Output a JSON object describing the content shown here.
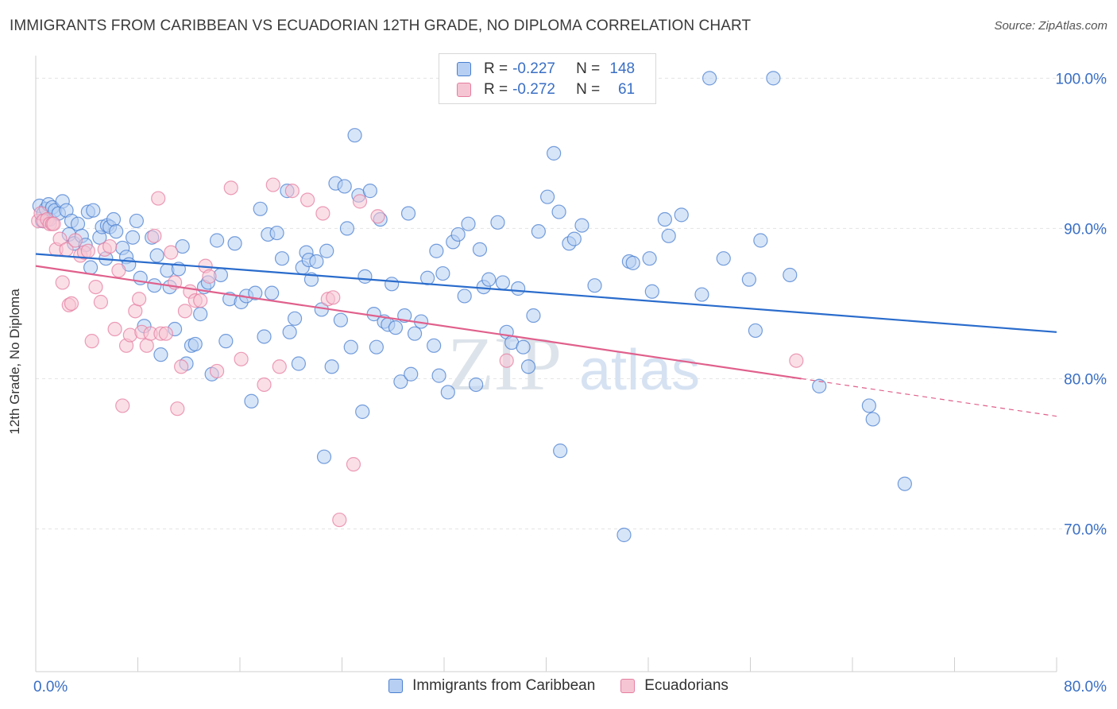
{
  "title": "IMMIGRANTS FROM CARIBBEAN VS ECUADORIAN 12TH GRADE, NO DIPLOMA CORRELATION CHART",
  "source": "Source: ZipAtlas.com",
  "watermark": {
    "zip": "ZIP",
    "atlas": "atlas"
  },
  "colors": {
    "blue": "#4a7fd0",
    "blue_fill": "#b7cff2",
    "blue_line": "#2a6ccc",
    "pink": "#e57ea0",
    "pink_fill": "#f6c5d4",
    "pink_line": "#e0608c",
    "tick_label": "#3a6fc4"
  },
  "stats": [
    {
      "r_label": "R =",
      "r_value": "-0.227",
      "n_label": "N =",
      "n_value": "148"
    },
    {
      "r_label": "R =",
      "r_value": "-0.272",
      "n_label": "N =",
      "n_value": "61"
    }
  ],
  "legend": [
    {
      "label": "Immigrants from Caribbean"
    },
    {
      "label": "Ecuadorians"
    }
  ],
  "chart_data": {
    "type": "scatter",
    "title": "IMMIGRANTS FROM CARIBBEAN VS ECUADORIAN 12TH GRADE, NO DIPLOMA CORRELATION CHART",
    "xlabel": "",
    "ylabel": "12th Grade, No Diploma",
    "xlim": [
      0,
      80
    ],
    "ylim": [
      60.5,
      101.5
    ],
    "x_tick_labels": [
      {
        "value": 0,
        "label": "0.0%"
      },
      {
        "value": 80,
        "label": "80.0%"
      }
    ],
    "y_tick_labels": [
      {
        "value": 100,
        "label": "100.0%"
      },
      {
        "value": 90,
        "label": "90.0%"
      },
      {
        "value": 80,
        "label": "80.0%"
      },
      {
        "value": 70,
        "label": "70.0%"
      }
    ],
    "grid": true,
    "legend_position": "bottom",
    "series": [
      {
        "name": "Immigrants from Caribbean",
        "trend": {
          "x": [
            0,
            80
          ],
          "y": [
            88.3,
            83.1
          ]
        },
        "points": [
          [
            0.3,
            91.5
          ],
          [
            0.5,
            90.5
          ],
          [
            0.6,
            91
          ],
          [
            0.8,
            91.3
          ],
          [
            1,
            91.6
          ],
          [
            1.1,
            90.6
          ],
          [
            1.3,
            91.4
          ],
          [
            1.5,
            91.2
          ],
          [
            1.8,
            91
          ],
          [
            2.1,
            91.8
          ],
          [
            2.4,
            91.2
          ],
          [
            2.6,
            89.6
          ],
          [
            2.8,
            90.5
          ],
          [
            3,
            89
          ],
          [
            3.3,
            90.3
          ],
          [
            3.6,
            89.5
          ],
          [
            3.9,
            88.9
          ],
          [
            4.1,
            91.1
          ],
          [
            4.3,
            87.4
          ],
          [
            4.5,
            91.2
          ],
          [
            5,
            89.4
          ],
          [
            5.2,
            90.1
          ],
          [
            5.5,
            88
          ],
          [
            5.6,
            90.2
          ],
          [
            5.8,
            90.1
          ],
          [
            6.1,
            90.6
          ],
          [
            6.3,
            89.8
          ],
          [
            6.8,
            88.7
          ],
          [
            7.1,
            88.1
          ],
          [
            7.3,
            87.6
          ],
          [
            7.6,
            89.4
          ],
          [
            7.9,
            90.5
          ],
          [
            8.2,
            86.7
          ],
          [
            8.5,
            83.5
          ],
          [
            9.1,
            89.4
          ],
          [
            9.3,
            86.2
          ],
          [
            9.5,
            88.2
          ],
          [
            9.8,
            81.6
          ],
          [
            10.3,
            87.2
          ],
          [
            10.5,
            86.1
          ],
          [
            10.9,
            83.3
          ],
          [
            11.2,
            87.3
          ],
          [
            11.5,
            88.8
          ],
          [
            11.8,
            81
          ],
          [
            12.2,
            82.2
          ],
          [
            12.5,
            82.3
          ],
          [
            12.9,
            84.3
          ],
          [
            13.2,
            86.1
          ],
          [
            13.5,
            86.4
          ],
          [
            13.8,
            80.3
          ],
          [
            14.2,
            89.2
          ],
          [
            14.5,
            86.9
          ],
          [
            14.9,
            82.5
          ],
          [
            15.2,
            85.3
          ],
          [
            15.6,
            89
          ],
          [
            16.1,
            85.1
          ],
          [
            16.5,
            85.5
          ],
          [
            16.9,
            78.5
          ],
          [
            17.2,
            85.7
          ],
          [
            17.6,
            91.3
          ],
          [
            17.9,
            82.8
          ],
          [
            18.2,
            89.6
          ],
          [
            18.5,
            85.7
          ],
          [
            18.9,
            89.7
          ],
          [
            19.3,
            88
          ],
          [
            19.7,
            92.5
          ],
          [
            19.9,
            83.1
          ],
          [
            20.3,
            84
          ],
          [
            20.6,
            81
          ],
          [
            20.9,
            87.4
          ],
          [
            21.2,
            88.4
          ],
          [
            21.4,
            87.9
          ],
          [
            21.6,
            86.6
          ],
          [
            22,
            87.8
          ],
          [
            22.4,
            84.6
          ],
          [
            22.6,
            74.8
          ],
          [
            22.8,
            88.5
          ],
          [
            23.2,
            80.8
          ],
          [
            23.5,
            93
          ],
          [
            23.9,
            83.9
          ],
          [
            24.2,
            92.8
          ],
          [
            24.4,
            90
          ],
          [
            24.7,
            82.1
          ],
          [
            25,
            96.2
          ],
          [
            25.3,
            92.2
          ],
          [
            25.6,
            77.8
          ],
          [
            25.8,
            86.8
          ],
          [
            26.2,
            92.5
          ],
          [
            26.5,
            84.3
          ],
          [
            26.7,
            82.1
          ],
          [
            27,
            90.6
          ],
          [
            27.3,
            83.8
          ],
          [
            27.6,
            83.6
          ],
          [
            27.9,
            86.3
          ],
          [
            28.2,
            83.4
          ],
          [
            28.6,
            79.8
          ],
          [
            28.9,
            84.2
          ],
          [
            29.2,
            91
          ],
          [
            29.4,
            80.3
          ],
          [
            29.7,
            83
          ],
          [
            30.2,
            83.8
          ],
          [
            30.7,
            86.7
          ],
          [
            31.2,
            82.2
          ],
          [
            31.4,
            88.5
          ],
          [
            31.6,
            80.2
          ],
          [
            31.9,
            87
          ],
          [
            32.3,
            79.1
          ],
          [
            32.7,
            89.1
          ],
          [
            33.1,
            89.6
          ],
          [
            33.6,
            85.5
          ],
          [
            33.9,
            90.3
          ],
          [
            34.5,
            79.6
          ],
          [
            34.8,
            88.6
          ],
          [
            35.1,
            86.1
          ],
          [
            35.5,
            86.6
          ],
          [
            36.2,
            90.4
          ],
          [
            36.6,
            86.4
          ],
          [
            36.9,
            83.1
          ],
          [
            37.3,
            82.4
          ],
          [
            37.8,
            86
          ],
          [
            38.2,
            82.1
          ],
          [
            38.6,
            80.8
          ],
          [
            39,
            84.2
          ],
          [
            39.4,
            89.8
          ],
          [
            40.1,
            92.1
          ],
          [
            40.6,
            95
          ],
          [
            41,
            91.1
          ],
          [
            41.1,
            75.2
          ],
          [
            41.8,
            89
          ],
          [
            42.2,
            89.3
          ],
          [
            42.8,
            90.2
          ],
          [
            43.8,
            86.2
          ],
          [
            46.1,
            69.6
          ],
          [
            46.5,
            87.8
          ],
          [
            46.8,
            87.7
          ],
          [
            48.1,
            88
          ],
          [
            48.3,
            85.8
          ],
          [
            49.3,
            90.6
          ],
          [
            49.6,
            89.5
          ],
          [
            50.6,
            90.9
          ],
          [
            52.2,
            85.6
          ],
          [
            52.8,
            100
          ],
          [
            53.9,
            88
          ],
          [
            55.9,
            86.6
          ],
          [
            56.4,
            83.2
          ],
          [
            56.8,
            89.2
          ],
          [
            57.8,
            100
          ],
          [
            59.1,
            86.9
          ],
          [
            61.4,
            79.5
          ],
          [
            65.3,
            78.2
          ],
          [
            65.6,
            77.3
          ],
          [
            68.1,
            73
          ]
        ]
      },
      {
        "name": "Ecuadorians",
        "trend": {
          "x": [
            0,
            60,
            80
          ],
          "y": [
            87.5,
            80.0,
            77.5
          ]
        },
        "points": [
          [
            0.2,
            90.5
          ],
          [
            0.4,
            91
          ],
          [
            0.6,
            90.5
          ],
          [
            0.9,
            90.6
          ],
          [
            1.1,
            90.3
          ],
          [
            1.3,
            90.3
          ],
          [
            1.4,
            90.3
          ],
          [
            1.6,
            88.6
          ],
          [
            1.9,
            89.3
          ],
          [
            2.1,
            86.4
          ],
          [
            2.4,
            88.6
          ],
          [
            2.6,
            84.9
          ],
          [
            2.8,
            85
          ],
          [
            3.1,
            89.2
          ],
          [
            3.5,
            88.2
          ],
          [
            3.8,
            88.4
          ],
          [
            4.1,
            88.5
          ],
          [
            4.4,
            82.5
          ],
          [
            4.7,
            86.1
          ],
          [
            5.1,
            85.1
          ],
          [
            5.4,
            88.6
          ],
          [
            5.8,
            88.8
          ],
          [
            6.2,
            83.3
          ],
          [
            6.5,
            87.2
          ],
          [
            6.8,
            78.2
          ],
          [
            7.1,
            82.2
          ],
          [
            7.4,
            82.9
          ],
          [
            7.8,
            84.5
          ],
          [
            8.1,
            85.3
          ],
          [
            8.3,
            83.1
          ],
          [
            8.7,
            82.2
          ],
          [
            9,
            83
          ],
          [
            9.3,
            89.5
          ],
          [
            9.6,
            92
          ],
          [
            9.8,
            83
          ],
          [
            10.2,
            83
          ],
          [
            10.6,
            88.4
          ],
          [
            10.9,
            86.4
          ],
          [
            11.1,
            78
          ],
          [
            11.4,
            80.8
          ],
          [
            11.7,
            84.5
          ],
          [
            12.1,
            85.8
          ],
          [
            12.5,
            85.2
          ],
          [
            12.9,
            85.2
          ],
          [
            13.3,
            87.5
          ],
          [
            13.6,
            86.8
          ],
          [
            14.2,
            80.5
          ],
          [
            15.3,
            92.7
          ],
          [
            16.1,
            81.3
          ],
          [
            17.9,
            79.6
          ],
          [
            18.6,
            92.9
          ],
          [
            19.1,
            80.8
          ],
          [
            20.1,
            92.5
          ],
          [
            21.3,
            91.9
          ],
          [
            22.5,
            91
          ],
          [
            22.9,
            85.3
          ],
          [
            23.3,
            85.4
          ],
          [
            23.8,
            70.6
          ],
          [
            24.9,
            74.3
          ],
          [
            25.4,
            91.8
          ],
          [
            26.8,
            90.8
          ],
          [
            36.9,
            81.2
          ],
          [
            59.6,
            81.2
          ]
        ]
      }
    ]
  }
}
